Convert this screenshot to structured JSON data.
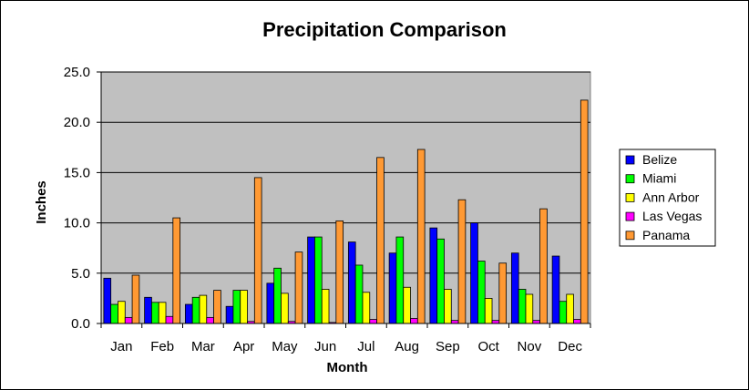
{
  "chart_data": {
    "type": "bar",
    "title": "Precipitation Comparison",
    "xlabel": "Month",
    "ylabel": "Inches",
    "ylim": [
      0,
      25
    ],
    "yticks": [
      "0.0",
      "5.0",
      "10.0",
      "15.0",
      "20.0",
      "25.0"
    ],
    "categories": [
      "Jan",
      "Feb",
      "Mar",
      "Apr",
      "May",
      "Jun",
      "Jul",
      "Aug",
      "Sep",
      "Oct",
      "Nov",
      "Dec"
    ],
    "grid": true,
    "legend_position": "right",
    "plot_background": "#c0c0c0",
    "series": [
      {
        "name": "Belize",
        "color": "#0000ff",
        "values": [
          4.5,
          2.6,
          1.9,
          1.7,
          4.0,
          8.6,
          8.1,
          7.0,
          9.5,
          10.0,
          7.0,
          6.7
        ]
      },
      {
        "name": "Miami",
        "color": "#00ff00",
        "values": [
          1.9,
          2.1,
          2.6,
          3.3,
          5.5,
          8.6,
          5.8,
          8.6,
          8.4,
          6.2,
          3.4,
          2.2
        ]
      },
      {
        "name": "Ann Arbor",
        "color": "#ffff00",
        "values": [
          2.2,
          2.1,
          2.8,
          3.3,
          3.0,
          3.4,
          3.1,
          3.6,
          3.4,
          2.5,
          2.9,
          2.9
        ]
      },
      {
        "name": "Las Vegas",
        "color": "#ff00ff",
        "values": [
          0.6,
          0.7,
          0.6,
          0.2,
          0.2,
          0.1,
          0.4,
          0.5,
          0.3,
          0.3,
          0.3,
          0.4
        ]
      },
      {
        "name": "Panama",
        "color": "#ff9933",
        "values": [
          4.8,
          10.5,
          3.3,
          14.5,
          7.1,
          10.2,
          16.5,
          17.3,
          12.3,
          6.0,
          11.4,
          22.2
        ]
      }
    ]
  }
}
